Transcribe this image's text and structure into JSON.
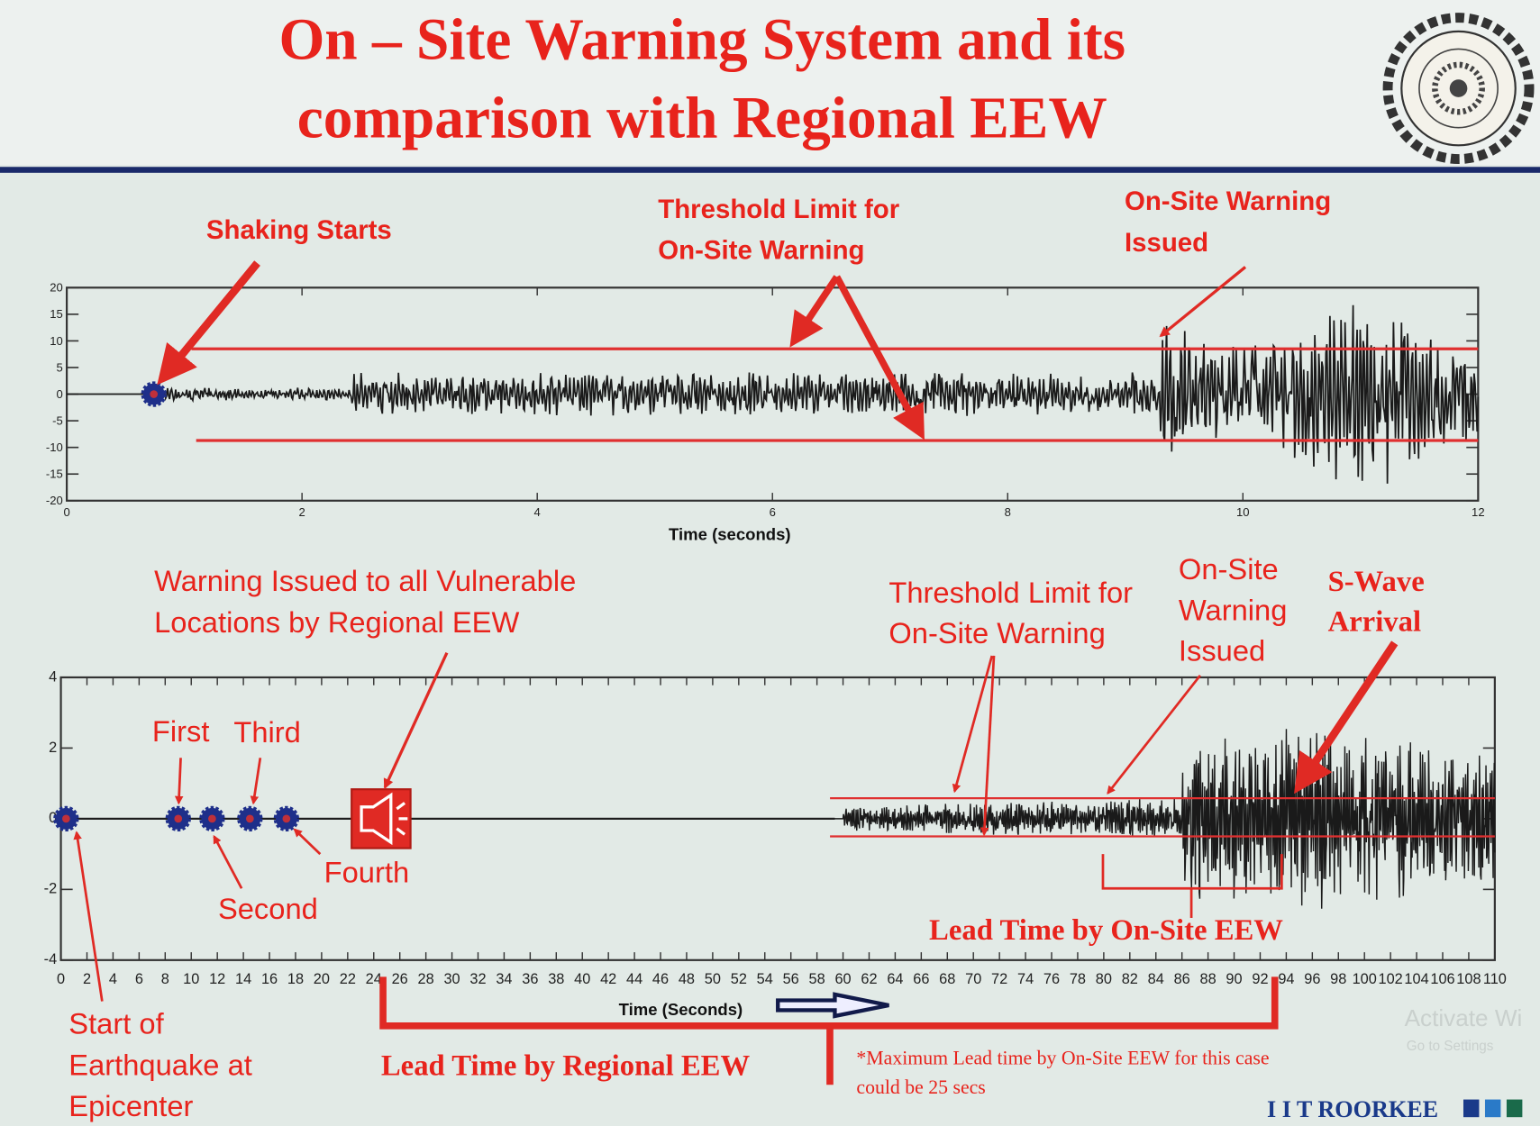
{
  "slide": {
    "title_line1": "On – Site Warning System and its",
    "title_line2": "comparison with Regional EEW",
    "brand": "I I T ROORKEE",
    "colors": {
      "title": "#e8231c",
      "divider": "#1a2a6a",
      "brand": "#1a3a8a",
      "threshold": "#e03030",
      "marker": "#1e2f8a"
    },
    "footnote_line1": "*Maximum Lead time by On-Site EEW for this case",
    "footnote_line2": "could be 25 secs",
    "watermark_line1": "Activate Wi",
    "watermark_line2": "Go to Settings"
  },
  "chart_data": [
    {
      "type": "line",
      "xlabel": "Time (seconds)",
      "ylabel": "",
      "xlim": [
        0,
        12
      ],
      "ylim": [
        -20,
        20
      ],
      "xticks": [
        "0",
        "2",
        "4",
        "6",
        "8",
        "10",
        "12"
      ],
      "yticks": [
        "20",
        "15",
        "10",
        "5",
        "0",
        "-5",
        "-10",
        "-15",
        "-20"
      ],
      "grid": false,
      "series": [
        {
          "description": "seismogram",
          "onset": 0.74,
          "strong_motion_from": 9.3
        }
      ],
      "thresholds": [
        {
          "y": 8.5,
          "x_start": 1.06
        },
        {
          "y": -8.7,
          "x_start": 1.1
        }
      ],
      "markers": [
        {
          "x": 0.74,
          "y": 0
        }
      ],
      "annotations": {
        "shaking": "Shaking Starts",
        "threshold_1": "Threshold Limit for",
        "threshold_2": "On-Site Warning",
        "onsite_1": "On-Site Warning",
        "onsite_2": "Issued"
      }
    },
    {
      "type": "line",
      "xlabel": "Time (Seconds)",
      "ylabel": "",
      "xlim": [
        0,
        110
      ],
      "ylim": [
        -4,
        4
      ],
      "xticks": [
        "0",
        "2",
        "4",
        "6",
        "8",
        "10",
        "12",
        "14",
        "16",
        "18",
        "20",
        "22",
        "24",
        "26",
        "28",
        "30",
        "32",
        "34",
        "36",
        "38",
        "40",
        "42",
        "44",
        "46",
        "48",
        "50",
        "52",
        "54",
        "56",
        "58",
        "60",
        "62",
        "64",
        "66",
        "68",
        "70",
        "72",
        "74",
        "76",
        "78",
        "80",
        "82",
        "84",
        "86",
        "88",
        "90",
        "92",
        "94",
        "96",
        "98",
        "100",
        "102",
        "104",
        "106",
        "108",
        "110"
      ],
      "yticks": [
        "4",
        "2",
        "0",
        "-2",
        "-4"
      ],
      "grid": false,
      "series": [
        {
          "description": "seismogram",
          "onset": 60,
          "s_wave": 94
        }
      ],
      "thresholds": [
        {
          "y": 0.58,
          "x_start": 59
        },
        {
          "y": -0.5,
          "x_start": 59
        }
      ],
      "markers": [
        {
          "x": 0.4,
          "y": 0
        },
        {
          "x": 9,
          "y": 0
        },
        {
          "x": 11.6,
          "y": 0
        },
        {
          "x": 14.5,
          "y": 0
        },
        {
          "x": 17.3,
          "y": 0
        }
      ],
      "annotations": {
        "regional_1": "Warning Issued to all Vulnerable",
        "regional_2": "Locations by Regional EEW",
        "first": "First",
        "second": "Second",
        "third": "Third",
        "fourth": "Fourth",
        "threshold_1": "Threshold Limit for",
        "threshold_2": "On-Site Warning",
        "onsite_1": "On-Site",
        "onsite_2": "Warning",
        "onsite_3": "Issued",
        "swave_1": "S-Wave",
        "swave_2": "Arrival",
        "lead_onsite": "Lead Time by On-Site EEW",
        "lead_regional": "Lead Time by Regional EEW",
        "start_1": "Start of",
        "start_2": "Earthquake at",
        "start_3": "Epicenter"
      }
    }
  ]
}
